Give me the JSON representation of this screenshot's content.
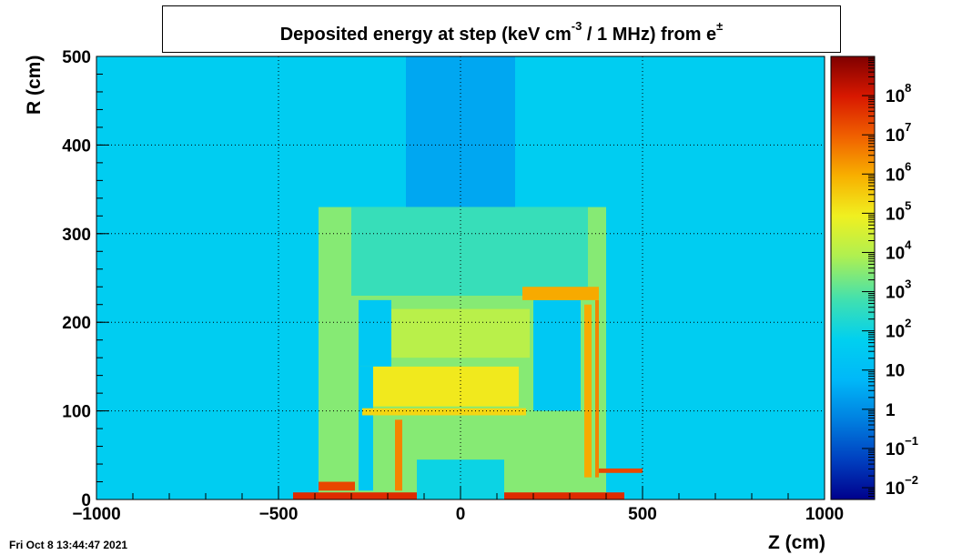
{
  "chart_data": {
    "type": "heatmap",
    "title": "Deposited energy at step (keV cm",
    "title_exp": "-3",
    "title_rest": "/ 1 MHz)  from",
    "title_particle": "e",
    "title_particle_sup": "±",
    "xlabel": "Z (cm)",
    "ylabel": "R (cm)",
    "xlim": [
      -1000,
      1000
    ],
    "ylim": [
      0,
      500
    ],
    "x_ticks": [
      {
        "value": -1000,
        "label": "−1000"
      },
      {
        "value": -500,
        "label": "−500"
      },
      {
        "value": 0,
        "label": "0"
      },
      {
        "value": 500,
        "label": "500"
      },
      {
        "value": 1000,
        "label": "1000"
      }
    ],
    "y_ticks": [
      {
        "value": 0,
        "label": "0"
      },
      {
        "value": 100,
        "label": "100"
      },
      {
        "value": 200,
        "label": "200"
      },
      {
        "value": 300,
        "label": "300"
      },
      {
        "value": 400,
        "label": "400"
      },
      {
        "value": 500,
        "label": "500"
      }
    ],
    "grid": true,
    "colorbar": {
      "scale": "log",
      "range": [
        0.005,
        1000000000
      ],
      "labels": [
        {
          "value": 0.01,
          "base": "10",
          "exp": "−2"
        },
        {
          "value": 0.1,
          "base": "10",
          "exp": "−1"
        },
        {
          "value": 1,
          "base": "1",
          "exp": ""
        },
        {
          "value": 10,
          "base": "10",
          "exp": ""
        },
        {
          "value": 100,
          "base": "10",
          "exp": "2"
        },
        {
          "value": 1000,
          "base": "10",
          "exp": "3"
        },
        {
          "value": 10000,
          "base": "10",
          "exp": "4"
        },
        {
          "value": 100000,
          "base": "10",
          "exp": "5"
        },
        {
          "value": 1000000,
          "base": "10",
          "exp": "6"
        },
        {
          "value": 10000000,
          "base": "10",
          "exp": "7"
        },
        {
          "value": 100000000,
          "base": "10",
          "exp": "8"
        }
      ]
    },
    "regions": [
      {
        "name": "background",
        "z": [
          -1000,
          1000
        ],
        "r": [
          0,
          500
        ],
        "value": 50
      },
      {
        "name": "forward-low-cone",
        "z": [
          -150,
          150
        ],
        "r": [
          330,
          500
        ],
        "value": 3
      },
      {
        "name": "detector-envelope",
        "z": [
          -390,
          400
        ],
        "r": [
          0,
          330
        ],
        "value": 3000
      },
      {
        "name": "outer-upper",
        "z": [
          -300,
          350
        ],
        "r": [
          230,
          330
        ],
        "value": 500
      },
      {
        "name": "endcap-left-inner",
        "z": [
          -280,
          -190
        ],
        "r": [
          150,
          225
        ],
        "value": 30
      },
      {
        "name": "endcap-left-low",
        "z": [
          -280,
          -240
        ],
        "r": [
          10,
          150
        ],
        "value": 30
      },
      {
        "name": "barrel-block",
        "z": [
          -240,
          160
        ],
        "r": [
          105,
          150
        ],
        "value": 100000
      },
      {
        "name": "support-bar",
        "z": [
          -270,
          180
        ],
        "r": [
          95,
          103
        ],
        "value": 200000
      },
      {
        "name": "top-plate",
        "z": [
          -190,
          190
        ],
        "r": [
          160,
          215
        ],
        "value": 10000
      },
      {
        "name": "endcap-right-inner",
        "z": [
          200,
          330
        ],
        "r": [
          100,
          225
        ],
        "value": 30
      },
      {
        "name": "right-pillar",
        "z": [
          340,
          360
        ],
        "r": [
          25,
          220
        ],
        "value": 1000000
      },
      {
        "name": "right-block",
        "z": [
          370,
          380
        ],
        "r": [
          25,
          225
        ],
        "value": 3000000
      },
      {
        "name": "right-bottom",
        "z": [
          380,
          500
        ],
        "r": [
          30,
          35
        ],
        "value": 20000000
      },
      {
        "name": "left-bottom",
        "z": [
          -390,
          -290
        ],
        "r": [
          10,
          20
        ],
        "value": 20000000
      },
      {
        "name": "beam-floor",
        "z": [
          -460,
          450
        ],
        "r": [
          0,
          8
        ],
        "value": 50000000
      },
      {
        "name": "inner-bore",
        "z": [
          -120,
          120
        ],
        "r": [
          0,
          45
        ],
        "value": 100
      },
      {
        "name": "inner-pipe-left",
        "z": [
          -180,
          -160
        ],
        "r": [
          10,
          90
        ],
        "value": 3000000
      },
      {
        "name": "upper-ridge",
        "z": [
          170,
          380
        ],
        "r": [
          225,
          240
        ],
        "value": 1000000
      }
    ]
  },
  "timestamp": "Fri Oct  8 13:44:47 2021"
}
